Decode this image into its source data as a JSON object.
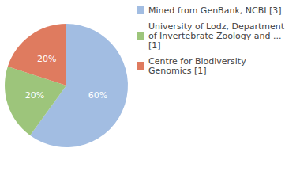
{
  "chart_data": {
    "type": "pie",
    "categories": [
      "Mined from GenBank, NCBI [3]",
      "University of Lodz, Department of Invertebrate Zoology and ... [1]",
      "Centre for Biodiversity Genomics [1]"
    ],
    "values": [
      60,
      20,
      20
    ],
    "value_labels": [
      "60%",
      "20%",
      "20%"
    ],
    "colors": [
      "#a2bde2",
      "#9dc57b",
      "#df7b5f"
    ],
    "data_labels": true,
    "legend": "right"
  }
}
